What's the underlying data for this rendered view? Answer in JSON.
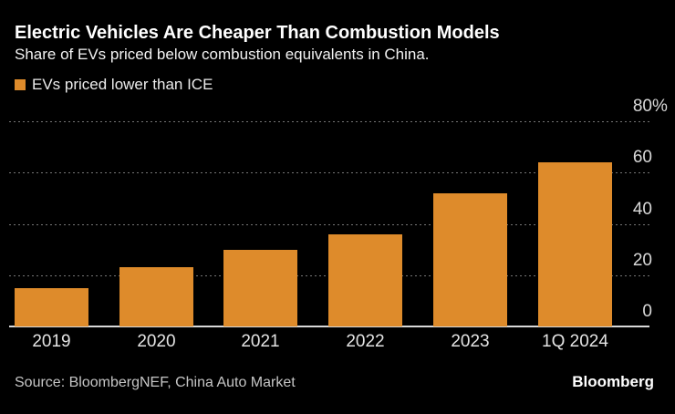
{
  "header": {
    "title": "Electric Vehicles Are Cheaper Than Combustion Models",
    "subtitle": "Share of EVs priced below combustion equivalents in China."
  },
  "legend": {
    "label": "EVs priced lower than ICE",
    "swatch_color": "#de8b2b",
    "swatch_icon": "square"
  },
  "chart_data": {
    "type": "bar",
    "title": "Electric Vehicles Are Cheaper Than Combustion Models",
    "subtitle": "Share of EVs priced below combustion equivalents in China.",
    "series_name": "EVs priced lower than ICE",
    "categories": [
      "2019",
      "2020",
      "2021",
      "2022",
      "2023",
      "1Q 2024"
    ],
    "values": [
      15,
      23,
      30,
      36,
      52,
      64
    ],
    "unit": "%",
    "xlabel": "",
    "ylabel": "",
    "ylim": [
      0,
      80
    ],
    "yticks": [
      0,
      20,
      40,
      60,
      80
    ],
    "ytick_labels": [
      "0",
      "20",
      "40",
      "60",
      "80%"
    ],
    "grid": "horizontal dotted",
    "legend_position": "top-left",
    "axis_labels_side": "right",
    "bar_color": "#de8b2b",
    "background_color": "#000000",
    "gridline_color": "#767676",
    "baseline_color": "#d9d9d9",
    "tick_label_color": "#d9d9d9"
  },
  "footer": {
    "source": "Source: BloombergNEF, China Auto Market",
    "brand": "Bloomberg"
  }
}
